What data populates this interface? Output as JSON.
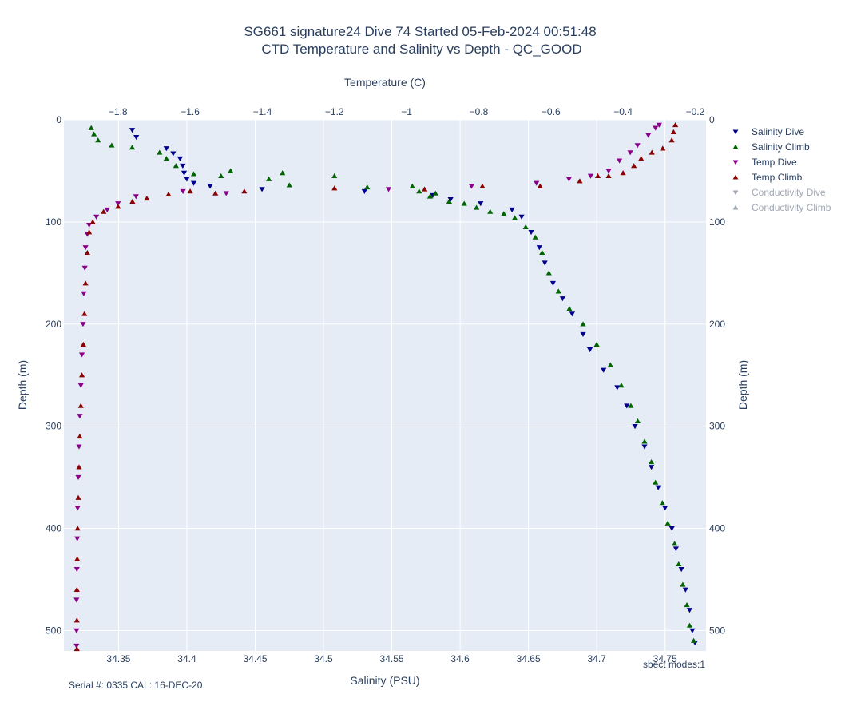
{
  "chart_data": {
    "type": "scatter",
    "title_line1": "SG661 signature24 Dive 74 Started 05-Feb-2024 00:51:48",
    "title_line2": "CTD Temperature and Salinity vs Depth - QC_GOOD",
    "x_bottom": {
      "label": "Salinity (PSU)",
      "range": [
        34.31,
        34.78
      ],
      "ticks": [
        "34.35",
        "34.4",
        "34.45",
        "34.5",
        "34.55",
        "34.6",
        "34.65",
        "34.7",
        "34.75"
      ],
      "tick_values": [
        34.35,
        34.4,
        34.45,
        34.5,
        34.55,
        34.6,
        34.65,
        34.7,
        34.75
      ]
    },
    "x_top": {
      "label": "Temperature (C)",
      "range": [
        -1.95,
        -0.17
      ],
      "ticks": [
        "−1.8",
        "−1.6",
        "−1.4",
        "−1.2",
        "−1",
        "−0.8",
        "−0.6",
        "−0.4",
        "−0.2"
      ],
      "tick_values": [
        -1.8,
        -1.6,
        -1.4,
        -1.2,
        -1.0,
        -0.8,
        -0.6,
        -0.4,
        -0.2
      ]
    },
    "y": {
      "label": "Depth (m)",
      "range": [
        0,
        520
      ],
      "reversed": true,
      "ticks": [
        "0",
        "100",
        "200",
        "300",
        "400",
        "500"
      ],
      "tick_values": [
        0,
        100,
        200,
        300,
        400,
        500
      ]
    },
    "legend": {
      "placement": "right",
      "items": [
        {
          "name": "Salinity Dive",
          "color": "#00008b",
          "marker": "triangle-down",
          "visible": true
        },
        {
          "name": "Salinity Climb",
          "color": "#006400",
          "marker": "triangle-up",
          "visible": true
        },
        {
          "name": "Temp Dive",
          "color": "#8b008b",
          "marker": "triangle-down",
          "visible": true
        },
        {
          "name": "Temp Climb",
          "color": "#8b0000",
          "marker": "triangle-up",
          "visible": true
        },
        {
          "name": "Conductivity Dive",
          "color": "#a0a8b4",
          "marker": "triangle-down",
          "visible": false
        },
        {
          "name": "Conductivity Climb",
          "color": "#a0a8b4",
          "marker": "triangle-up",
          "visible": false
        }
      ]
    },
    "series": [
      {
        "name": "Salinity Dive",
        "axis": "salinity",
        "color": "#00008b",
        "marker": "triangle-down",
        "points": [
          [
            34.36,
            10
          ],
          [
            34.363,
            17
          ],
          [
            34.385,
            28
          ],
          [
            34.39,
            33
          ],
          [
            34.395,
            38
          ],
          [
            34.397,
            45
          ],
          [
            34.398,
            52
          ],
          [
            34.4,
            58
          ],
          [
            34.405,
            62
          ],
          [
            34.417,
            65
          ],
          [
            34.455,
            68
          ],
          [
            34.53,
            70
          ],
          [
            34.58,
            74
          ],
          [
            34.593,
            78
          ],
          [
            34.615,
            82
          ],
          [
            34.638,
            88
          ],
          [
            34.645,
            95
          ],
          [
            34.652,
            110
          ],
          [
            34.658,
            125
          ],
          [
            34.662,
            140
          ],
          [
            34.668,
            160
          ],
          [
            34.675,
            175
          ],
          [
            34.682,
            190
          ],
          [
            34.69,
            210
          ],
          [
            34.695,
            225
          ],
          [
            34.705,
            245
          ],
          [
            34.715,
            262
          ],
          [
            34.722,
            280
          ],
          [
            34.728,
            300
          ],
          [
            34.735,
            320
          ],
          [
            34.74,
            340
          ],
          [
            34.745,
            360
          ],
          [
            34.75,
            380
          ],
          [
            34.755,
            400
          ],
          [
            34.758,
            420
          ],
          [
            34.762,
            440
          ],
          [
            34.765,
            460
          ],
          [
            34.768,
            480
          ],
          [
            34.77,
            500
          ],
          [
            34.772,
            512
          ]
        ]
      },
      {
        "name": "Salinity Climb",
        "axis": "salinity",
        "color": "#006400",
        "marker": "triangle-up",
        "points": [
          [
            34.33,
            8
          ],
          [
            34.332,
            14
          ],
          [
            34.335,
            20
          ],
          [
            34.345,
            25
          ],
          [
            34.36,
            27
          ],
          [
            34.38,
            32
          ],
          [
            34.385,
            38
          ],
          [
            34.392,
            45
          ],
          [
            34.405,
            53
          ],
          [
            34.425,
            55
          ],
          [
            34.432,
            50
          ],
          [
            34.46,
            58
          ],
          [
            34.47,
            52
          ],
          [
            34.475,
            64
          ],
          [
            34.508,
            55
          ],
          [
            34.532,
            66
          ],
          [
            34.565,
            65
          ],
          [
            34.57,
            70
          ],
          [
            34.578,
            75
          ],
          [
            34.582,
            72
          ],
          [
            34.592,
            80
          ],
          [
            34.603,
            82
          ],
          [
            34.612,
            86
          ],
          [
            34.622,
            90
          ],
          [
            34.632,
            92
          ],
          [
            34.64,
            96
          ],
          [
            34.648,
            105
          ],
          [
            34.655,
            115
          ],
          [
            34.66,
            130
          ],
          [
            34.665,
            150
          ],
          [
            34.672,
            168
          ],
          [
            34.68,
            185
          ],
          [
            34.69,
            200
          ],
          [
            34.7,
            220
          ],
          [
            34.71,
            240
          ],
          [
            34.718,
            260
          ],
          [
            34.725,
            280
          ],
          [
            34.73,
            295
          ],
          [
            34.735,
            315
          ],
          [
            34.74,
            335
          ],
          [
            34.743,
            355
          ],
          [
            34.748,
            375
          ],
          [
            34.752,
            395
          ],
          [
            34.757,
            415
          ],
          [
            34.76,
            435
          ],
          [
            34.763,
            455
          ],
          [
            34.766,
            475
          ],
          [
            34.768,
            495
          ],
          [
            34.771,
            510
          ]
        ]
      },
      {
        "name": "Temp Dive",
        "axis": "temperature",
        "color": "#8b008b",
        "marker": "triangle-down",
        "points": [
          [
            -0.3,
            5
          ],
          [
            -0.31,
            8
          ],
          [
            -0.33,
            15
          ],
          [
            -0.36,
            25
          ],
          [
            -0.38,
            32
          ],
          [
            -0.41,
            40
          ],
          [
            -0.44,
            50
          ],
          [
            -0.49,
            55
          ],
          [
            -0.55,
            58
          ],
          [
            -0.64,
            62
          ],
          [
            -0.82,
            65
          ],
          [
            -1.05,
            68
          ],
          [
            -1.5,
            72
          ],
          [
            -1.62,
            70
          ],
          [
            -1.75,
            75
          ],
          [
            -1.8,
            82
          ],
          [
            -1.83,
            88
          ],
          [
            -1.86,
            95
          ],
          [
            -1.88,
            103
          ],
          [
            -1.885,
            112
          ],
          [
            -1.89,
            125
          ],
          [
            -1.892,
            145
          ],
          [
            -1.895,
            170
          ],
          [
            -1.897,
            200
          ],
          [
            -1.9,
            230
          ],
          [
            -1.903,
            260
          ],
          [
            -1.906,
            290
          ],
          [
            -1.908,
            320
          ],
          [
            -1.91,
            350
          ],
          [
            -1.912,
            380
          ],
          [
            -1.913,
            410
          ],
          [
            -1.914,
            440
          ],
          [
            -1.915,
            470
          ],
          [
            -1.915,
            500
          ],
          [
            -1.915,
            515
          ]
        ]
      },
      {
        "name": "Temp Climb",
        "axis": "temperature",
        "color": "#8b0000",
        "marker": "triangle-up",
        "points": [
          [
            -0.255,
            5
          ],
          [
            -0.26,
            12
          ],
          [
            -0.265,
            20
          ],
          [
            -0.29,
            28
          ],
          [
            -0.32,
            32
          ],
          [
            -0.35,
            38
          ],
          [
            -0.37,
            45
          ],
          [
            -0.4,
            52
          ],
          [
            -0.44,
            55
          ],
          [
            -0.47,
            55
          ],
          [
            -0.52,
            60
          ],
          [
            -0.63,
            65
          ],
          [
            -0.79,
            65
          ],
          [
            -0.95,
            68
          ],
          [
            -1.2,
            67
          ],
          [
            -1.45,
            70
          ],
          [
            -1.53,
            72
          ],
          [
            -1.6,
            70
          ],
          [
            -1.66,
            73
          ],
          [
            -1.72,
            77
          ],
          [
            -1.76,
            80
          ],
          [
            -1.8,
            85
          ],
          [
            -1.84,
            90
          ],
          [
            -1.87,
            100
          ],
          [
            -1.88,
            110
          ],
          [
            -1.885,
            130
          ],
          [
            -1.89,
            160
          ],
          [
            -1.893,
            190
          ],
          [
            -1.896,
            220
          ],
          [
            -1.9,
            250
          ],
          [
            -1.903,
            280
          ],
          [
            -1.906,
            310
          ],
          [
            -1.908,
            340
          ],
          [
            -1.91,
            370
          ],
          [
            -1.912,
            400
          ],
          [
            -1.913,
            430
          ],
          [
            -1.914,
            460
          ],
          [
            -1.914,
            490
          ],
          [
            -1.914,
            518
          ]
        ]
      }
    ]
  },
  "annotations": {
    "serial": "Serial #: 0335  CAL: 16-DEC-20",
    "modes": "sbect modes:1"
  }
}
